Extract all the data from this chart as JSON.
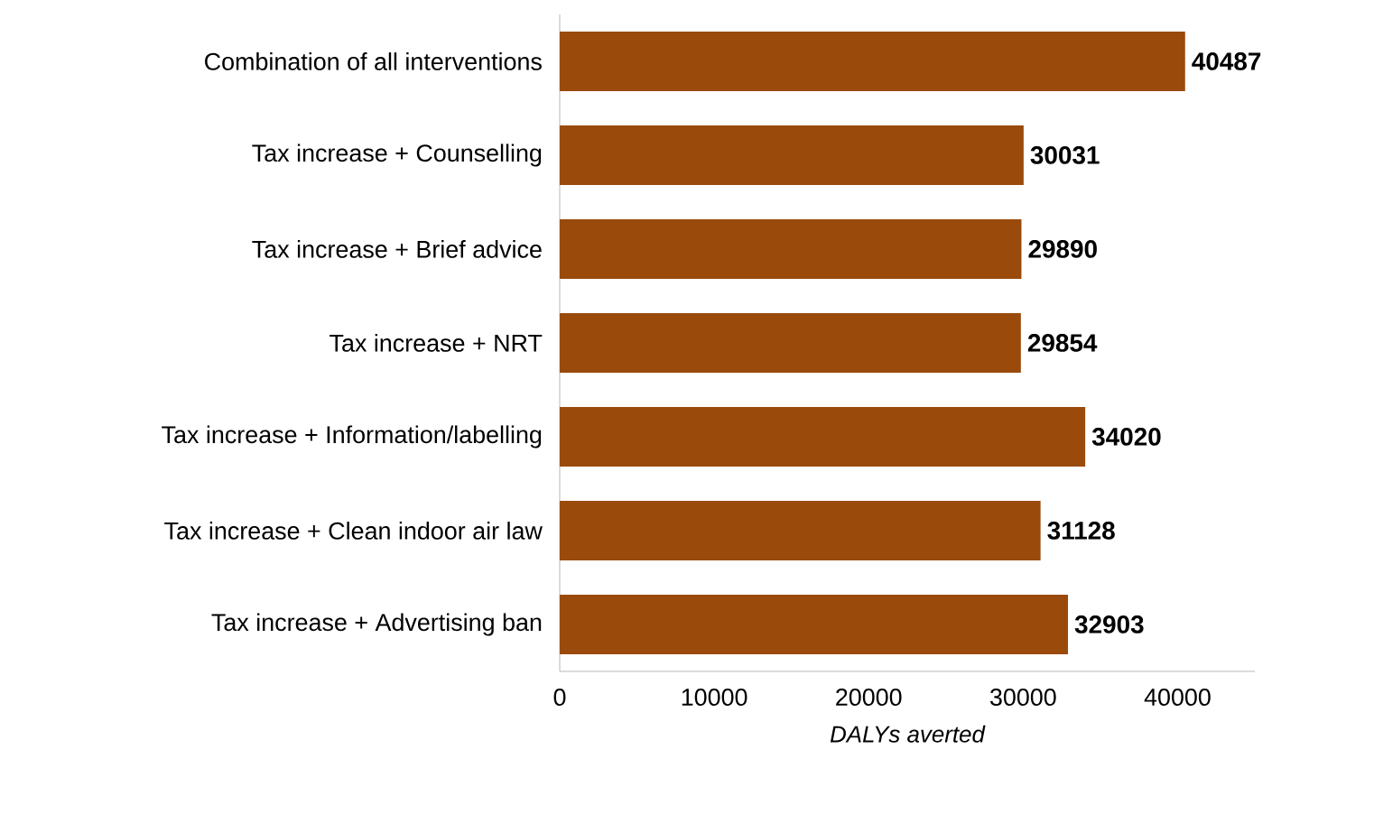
{
  "chart_data": {
    "type": "bar",
    "orientation": "horizontal",
    "categories": [
      "Combination of all interventions",
      "Tax increase + Counselling",
      "Tax increase + Brief advice",
      "Tax increase + NRT",
      "Tax increase + Information/labelling",
      "Tax increase + Clean indoor air law",
      "Tax increase + Advertising ban"
    ],
    "values": [
      40487,
      30031,
      29890,
      29854,
      34020,
      31128,
      32903
    ],
    "color": "#9a4a0a",
    "xlabel": "DALYs averted",
    "xlim": [
      0,
      45000
    ],
    "xticks": [
      0,
      10000,
      20000,
      30000,
      40000
    ],
    "data_labels": true,
    "grid": false
  }
}
